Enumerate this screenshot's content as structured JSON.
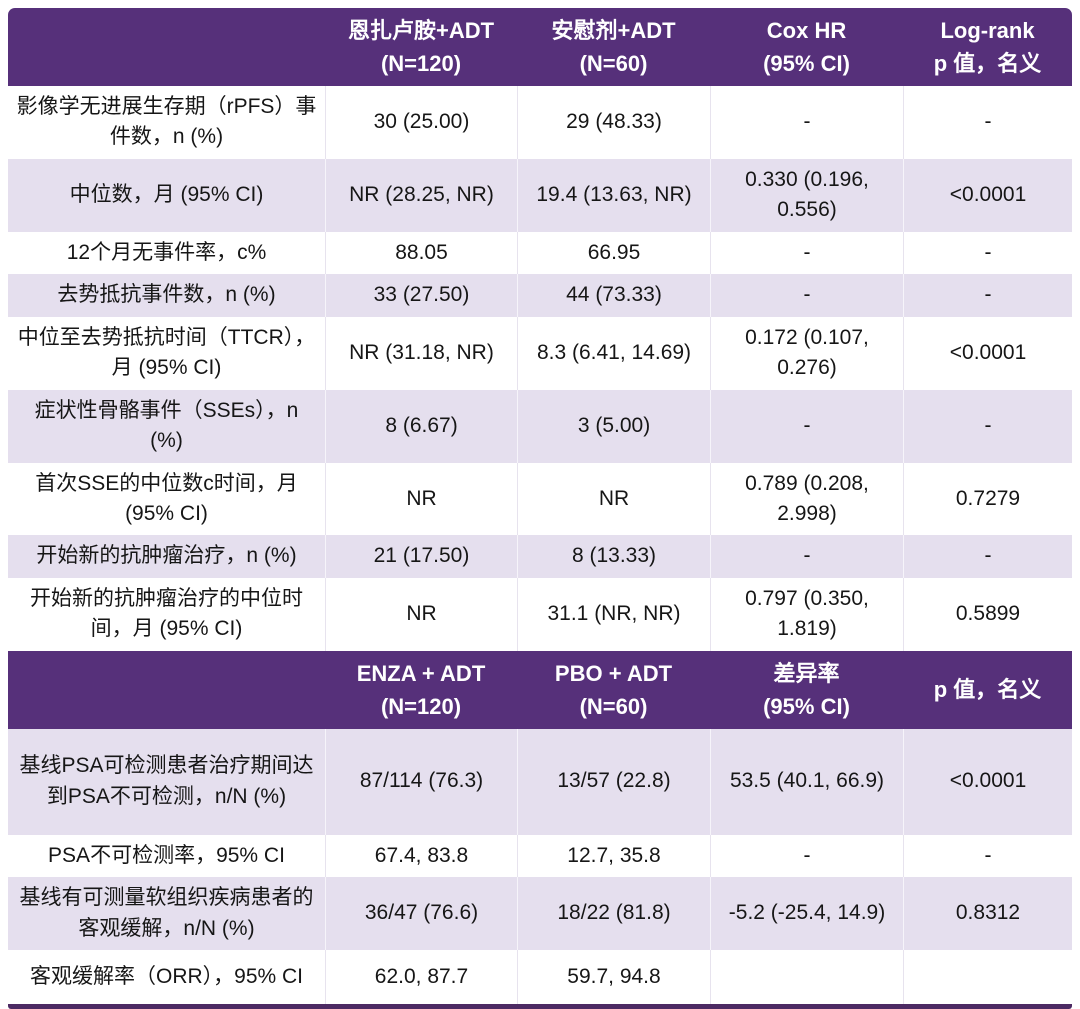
{
  "colors": {
    "header_bg": "#56307a",
    "row_bg": "#ffffff",
    "row_alt_bg": "#e5dfee",
    "bottom_border": "#4c2a63",
    "header_text": "#ffffff",
    "body_text": "#161616"
  },
  "chart_data": {
    "type": "table",
    "sections": [
      {
        "name": "efficacy-outcomes",
        "header": [
          {
            "lines": [
              ""
            ]
          },
          {
            "lines": [
              "恩扎卢胺+ADT",
              "(N=120)"
            ]
          },
          {
            "lines": [
              "安慰剂+ADT",
              "(N=60)"
            ]
          },
          {
            "lines": [
              "Cox HR",
              "(95% CI)"
            ]
          },
          {
            "lines": [
              "Log-rank",
              "p 值，名义"
            ]
          }
        ],
        "rows": [
          {
            "cells": [
              "影像学无进展生存期（rPFS）事件数，n (%)",
              "30 (25.00)",
              "29 (48.33)",
              "-",
              "-"
            ]
          },
          {
            "cells": [
              "中位数，月 (95% CI)",
              "NR (28.25, NR)",
              "19.4 (13.63, NR)",
              "0.330 (0.196, 0.556)",
              "<0.0001"
            ]
          },
          {
            "cells": [
              "12个月无事件率，c%",
              "88.05",
              "66.95",
              "-",
              "-"
            ]
          },
          {
            "cells": [
              "去势抵抗事件数，n (%)",
              "33 (27.50)",
              "44 (73.33)",
              "-",
              "-"
            ]
          },
          {
            "cells": [
              "中位至去势抵抗时间（TTCR），月 (95% CI)",
              "NR (31.18, NR)",
              "8.3 (6.41, 14.69)",
              "0.172 (0.107, 0.276)",
              "<0.0001"
            ]
          },
          {
            "cells": [
              "症状性骨骼事件（SSEs），n (%)",
              "8 (6.67)",
              "3 (5.00)",
              "-",
              "-"
            ]
          },
          {
            "cells": [
              "首次SSE的中位数c时间，月 (95% CI)",
              "NR",
              "NR",
              "0.789 (0.208, 2.998)",
              "0.7279"
            ]
          },
          {
            "cells": [
              "开始新的抗肿瘤治疗，n (%)",
              "21 (17.50)",
              "8 (13.33)",
              "-",
              "-"
            ]
          },
          {
            "cells": [
              "开始新的抗肿瘤治疗的中位时间，月 (95% CI)",
              "NR",
              "31.1 (NR, NR)",
              "0.797 (0.350, 1.819)",
              "0.5899"
            ]
          }
        ]
      },
      {
        "name": "psa-orr-outcomes",
        "header": [
          {
            "lines": [
              ""
            ]
          },
          {
            "lines": [
              "ENZA + ADT",
              "(N=120)"
            ]
          },
          {
            "lines": [
              "PBO + ADT",
              "(N=60)"
            ]
          },
          {
            "lines": [
              "差异率",
              "(95% CI)"
            ]
          },
          {
            "lines": [
              "p 值，名义"
            ]
          }
        ],
        "rows": [
          {
            "cells": [
              "基线PSA可检测患者治疗期间达到PSA不可检测，n/N (%)",
              "87/114 (76.3)",
              "13/57 (22.8)",
              "53.5 (40.1, 66.9)",
              "<0.0001"
            ]
          },
          {
            "cells": [
              "PSA不可检测率，95% CI",
              "67.4, 83.8",
              "12.7, 35.8",
              "-",
              "-"
            ]
          },
          {
            "cells": [
              "基线有可测量软组织疾病患者的客观缓解，n/N (%)",
              "36/47 (76.6)",
              "18/22 (81.8)",
              "-5.2 (-25.4, 14.9)",
              "0.8312"
            ]
          },
          {
            "cells": [
              "客观缓解率（ORR），95% CI",
              "62.0, 87.7",
              "59.7, 94.8",
              "",
              ""
            ]
          }
        ]
      }
    ]
  }
}
